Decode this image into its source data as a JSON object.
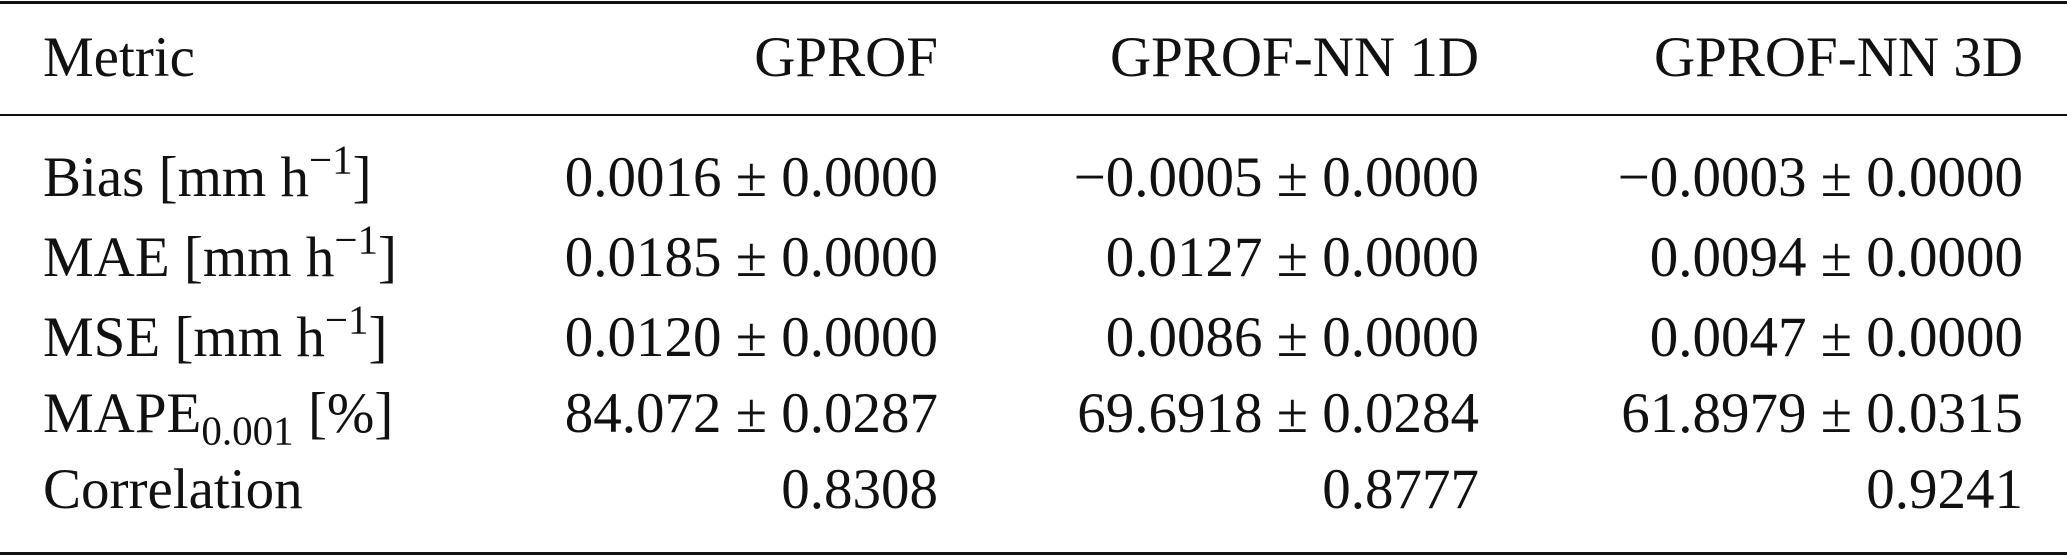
{
  "table": {
    "header": [
      "Metric",
      "GPROF",
      "GPROF-NN 1D",
      "GPROF-NN 3D"
    ],
    "rows": [
      {
        "metric": {
          "text": "Bias [mm h",
          "sup": "−1",
          "suffix": "]"
        },
        "values": [
          "0.0016 ± 0.0000",
          "−0.0005 ± 0.0000",
          "−0.0003 ± 0.0000"
        ]
      },
      {
        "metric": {
          "text": "MAE [mm h",
          "sup": "−1",
          "suffix": "]"
        },
        "values": [
          "0.0185 ± 0.0000",
          "0.0127 ± 0.0000",
          "0.0094 ± 0.0000"
        ]
      },
      {
        "metric": {
          "text": "MSE [mm h",
          "sup": "−1",
          "suffix": "]"
        },
        "values": [
          "0.0120 ± 0.0000",
          "0.0086 ± 0.0000",
          "0.0047 ± 0.0000"
        ]
      },
      {
        "metric": {
          "text": "MAPE",
          "sub": "0.001",
          "suffix": " [%]"
        },
        "values": [
          "84.072 ± 0.0287",
          "69.6918 ± 0.0284",
          "61.8979 ± 0.0315"
        ]
      },
      {
        "metric": {
          "text": "Correlation"
        },
        "values": [
          "0.8308",
          "0.8777",
          "0.9241"
        ]
      }
    ]
  }
}
